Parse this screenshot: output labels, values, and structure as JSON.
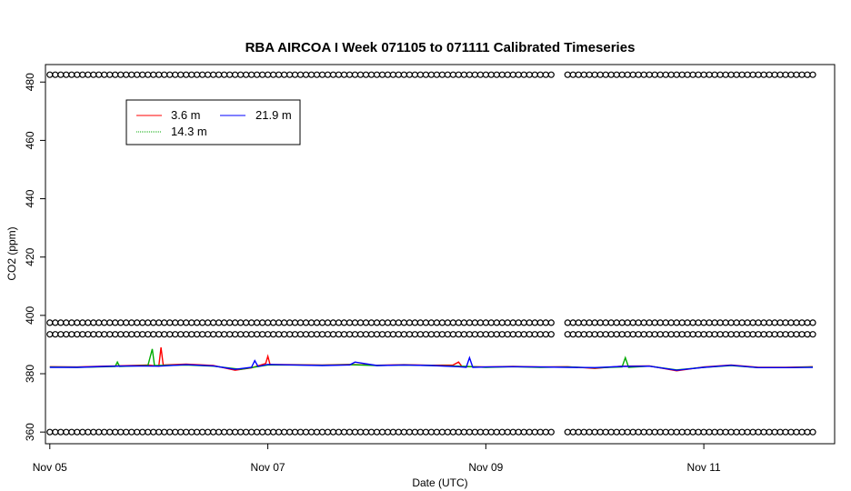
{
  "chart_data": {
    "type": "line",
    "title": "RBA AIRCOA I  Week 071105 to 071111  Calibrated Timeseries",
    "xlabel": "Date (UTC)",
    "ylabel": "CO2 (ppm)",
    "xlim": [
      -0.04,
      7.2
    ],
    "ylim": [
      356,
      486
    ],
    "x_ticks": [
      0,
      2,
      4,
      6
    ],
    "x_tick_labels": [
      "Nov 05",
      "Nov 07",
      "Nov 09",
      "Nov 11"
    ],
    "y_ticks": [
      360,
      380,
      400,
      420,
      440,
      460,
      480
    ],
    "y_tick_labels": [
      "360",
      "380",
      "400",
      "420",
      "440",
      "460",
      "480"
    ],
    "grid": false,
    "legend_position": "top-left",
    "legend": [
      "3.6 m",
      "14.3 m",
      "21.9 m"
    ],
    "series": [
      {
        "name": "3.6 m",
        "color": "#ff0000",
        "x": [
          0,
          0.25,
          0.5,
          0.75,
          0.9,
          1.0,
          1.02,
          1.04,
          1.25,
          1.5,
          1.7,
          1.85,
          1.98,
          2.0,
          2.02,
          2.25,
          2.5,
          2.75,
          3.0,
          3.25,
          3.5,
          3.7,
          3.75,
          3.78,
          4.0,
          4.25,
          4.5,
          4.75,
          5.0,
          5.25,
          5.5,
          5.75,
          6.0,
          6.25,
          6.5,
          6.75,
          7.0
        ],
        "y": [
          382.4,
          382.3,
          382.6,
          382.8,
          383.0,
          382.6,
          389.0,
          383.0,
          383.3,
          382.8,
          381.2,
          382.0,
          383.5,
          386.0,
          383.2,
          383.1,
          383.0,
          383.2,
          382.9,
          383.1,
          382.9,
          383.0,
          384.0,
          382.5,
          382.3,
          382.5,
          382.3,
          382.4,
          381.8,
          382.6,
          382.7,
          381.0,
          382.3,
          383.0,
          382.2,
          382.2,
          382.4
        ]
      },
      {
        "name": "14.3 m",
        "color": "#00aa00",
        "x": [
          0,
          0.25,
          0.6,
          0.62,
          0.64,
          0.9,
          0.94,
          0.96,
          1.25,
          1.5,
          1.75,
          2.0,
          2.25,
          2.5,
          2.75,
          3.0,
          3.25,
          3.5,
          3.75,
          4.0,
          4.25,
          4.5,
          4.75,
          5.0,
          5.25,
          5.28,
          5.31,
          5.5,
          5.75,
          6.0,
          6.25,
          6.5,
          6.75,
          7.0
        ],
        "y": [
          382.3,
          382.2,
          382.5,
          384.0,
          382.5,
          382.8,
          388.5,
          382.8,
          383.0,
          382.6,
          381.5,
          383.0,
          383.0,
          382.9,
          383.1,
          382.8,
          383.0,
          382.8,
          382.6,
          382.2,
          382.4,
          382.2,
          382.3,
          382.0,
          382.3,
          385.5,
          382.2,
          382.6,
          381.3,
          382.2,
          382.8,
          382.1,
          382.1,
          382.3
        ]
      },
      {
        "name": "21.9 m",
        "color": "#0000ff",
        "x": [
          0,
          0.25,
          0.5,
          0.75,
          1.0,
          1.25,
          1.5,
          1.7,
          1.85,
          1.88,
          1.91,
          2.0,
          2.25,
          2.5,
          2.75,
          2.8,
          3.0,
          3.25,
          3.5,
          3.75,
          3.82,
          3.85,
          3.88,
          4.0,
          4.25,
          4.5,
          4.75,
          5.0,
          5.25,
          5.5,
          5.75,
          6.0,
          6.25,
          6.5,
          6.75,
          7.0
        ],
        "y": [
          382.2,
          382.2,
          382.5,
          382.7,
          382.6,
          383.1,
          382.7,
          381.5,
          382.2,
          384.5,
          382.5,
          383.2,
          383.0,
          382.8,
          383.0,
          384.0,
          382.8,
          383.0,
          382.8,
          382.4,
          382.2,
          385.5,
          382.2,
          382.3,
          382.4,
          382.3,
          382.2,
          382.1,
          382.5,
          382.6,
          381.2,
          382.2,
          382.9,
          382.1,
          382.1,
          382.2
        ]
      },
      {
        "name": "",
        "type": "scatter",
        "marker": "open-circle",
        "color": "#000000",
        "x_range": [
          0,
          7
        ],
        "gaps": [
          [
            4.6,
            4.74
          ]
        ],
        "levels": [
          482.5,
          397.5,
          393.5,
          360.0
        ]
      }
    ]
  }
}
